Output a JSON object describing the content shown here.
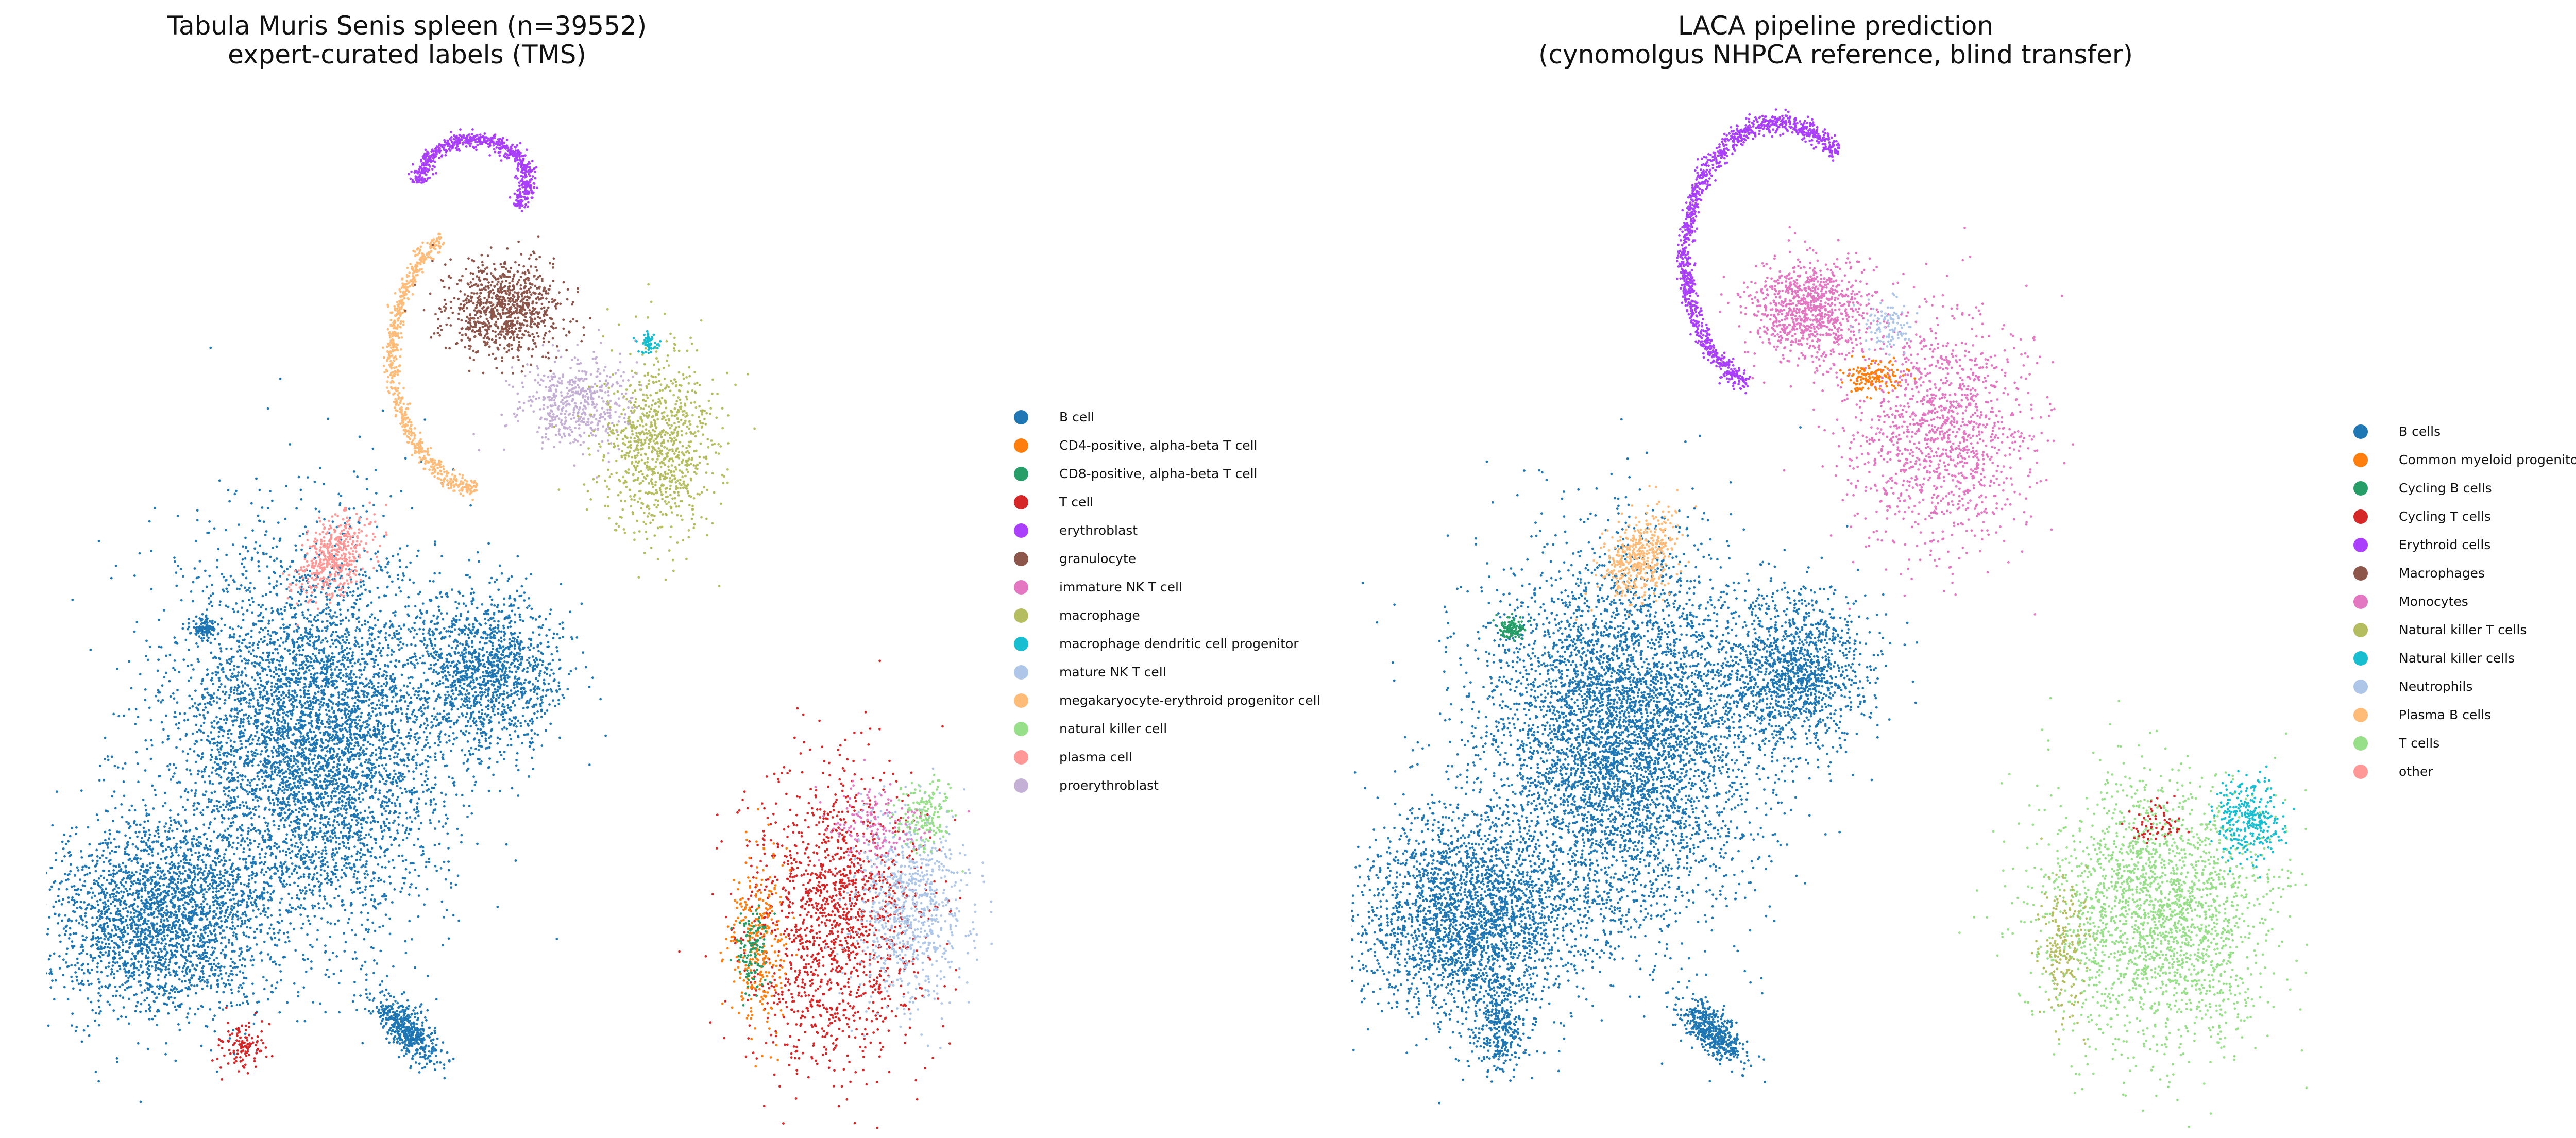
{
  "chart_data": [
    {
      "type": "scatter",
      "title": "Tabula Muris Senis spleen (n=39552)",
      "subtitle": "expert-curated labels (TMS)",
      "xlabel": "",
      "ylabel": "",
      "axes_visible": false,
      "legend_placement": "right",
      "n_cells": 39552,
      "series": [
        {
          "name": "B cell",
          "color": "#1f77b4"
        },
        {
          "name": "CD4-positive, alpha-beta T cell",
          "color": "#ff7f0e"
        },
        {
          "name": "CD8-positive, alpha-beta T cell",
          "color": "#279e68"
        },
        {
          "name": "T cell",
          "color": "#d62728"
        },
        {
          "name": "erythroblast",
          "color": "#aa40fc"
        },
        {
          "name": "granulocyte",
          "color": "#8c564b"
        },
        {
          "name": "immature NK T cell",
          "color": "#e377c2"
        },
        {
          "name": "macrophage",
          "color": "#b5bd61"
        },
        {
          "name": "macrophage dendritic cell progenitor",
          "color": "#17becf"
        },
        {
          "name": "mature NK T cell",
          "color": "#aec7e8"
        },
        {
          "name": "megakaryocyte-erythroid progenitor cell",
          "color": "#ffbb78"
        },
        {
          "name": "natural killer cell",
          "color": "#98df8a"
        },
        {
          "name": "plasma cell",
          "color": "#ff9896"
        },
        {
          "name": "proerythroblast",
          "color": "#c5b0d5"
        }
      ]
    },
    {
      "type": "scatter",
      "title": "LACA pipeline prediction",
      "subtitle": "(cynomolgus NHPCA reference, blind transfer)",
      "xlabel": "",
      "ylabel": "",
      "axes_visible": false,
      "legend_placement": "right",
      "series": [
        {
          "name": "B cells",
          "color": "#1f77b4"
        },
        {
          "name": "Common myeloid progenitors",
          "color": "#ff7f0e"
        },
        {
          "name": "Cycling B cells",
          "color": "#279e68"
        },
        {
          "name": "Cycling T cells",
          "color": "#d62728"
        },
        {
          "name": "Erythroid cells",
          "color": "#aa40fc"
        },
        {
          "name": "Macrophages",
          "color": "#8c564b"
        },
        {
          "name": "Monocytes",
          "color": "#e377c2"
        },
        {
          "name": "Natural killer T cells",
          "color": "#b5bd61"
        },
        {
          "name": "Natural killer cells",
          "color": "#17becf"
        },
        {
          "name": "Neutrophils",
          "color": "#aec7e8"
        },
        {
          "name": "Plasma B cells",
          "color": "#ffbb78"
        },
        {
          "name": "T cells",
          "color": "#98df8a"
        },
        {
          "name": "other",
          "color": "#ff9896"
        }
      ]
    }
  ]
}
